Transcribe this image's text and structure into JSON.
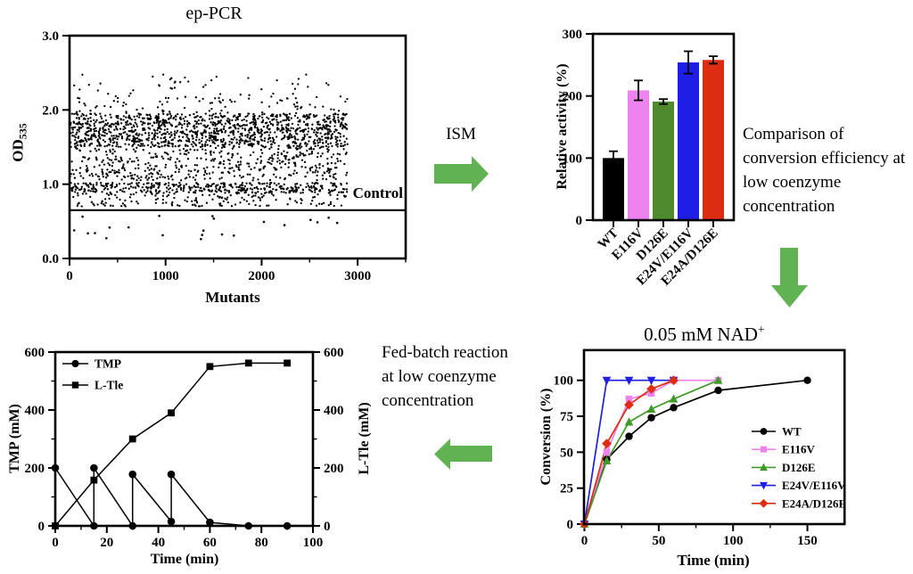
{
  "figure": {
    "background": "#ffffff",
    "arrow_color": "#61b252"
  },
  "annotations": {
    "ism_label": "ISM",
    "comparison_text": "Comparison of conversion efficiency at low coenzyme concentration",
    "fedbatch_text": "Fed-batch reaction at low coenzyme concentration"
  },
  "chart_data": [
    {
      "id": "ep_pcr_mutant_screen",
      "type": "scatter",
      "title": "ep-PCR",
      "xlabel": "Mutants",
      "ylabel": "OD535",
      "ylabel_base": "OD",
      "ylabel_sub": "535",
      "xlim": [
        0,
        3500
      ],
      "ylim": [
        0,
        3
      ],
      "x_major_ticks": [
        0,
        1000,
        2000,
        3000
      ],
      "x_major_tick_labels": [
        "0",
        "1000",
        "2000",
        "3000"
      ],
      "x_minor_ticks": [
        500,
        1500,
        2500,
        3500
      ],
      "y_major_ticks": [
        0,
        1,
        2,
        3
      ],
      "y_major_tick_labels": [
        "0.0",
        "1.0",
        "2.0",
        "3.0"
      ],
      "control_line_y": 0.65,
      "control_label": "Control",
      "point_color": "#000000",
      "points_model": {
        "seed": 987654321,
        "n_points": 2400,
        "x_range": [
          5,
          2895
        ],
        "y_bands": [
          {
            "range": [
              1.5,
              1.95
            ],
            "weight": 0.52
          },
          {
            "range": [
              1.05,
              1.5
            ],
            "weight": 0.2
          },
          {
            "range": [
              0.88,
              1.02
            ],
            "weight": 0.16
          },
          {
            "range": [
              0.7,
              0.88
            ],
            "weight": 0.07
          },
          {
            "range": [
              1.95,
              2.2
            ],
            "weight": 0.037
          },
          {
            "range": [
              2.2,
              2.48
            ],
            "weight": 0.013
          }
        ],
        "outliers_below_control": {
          "n": 22,
          "x_range": [
            40,
            2850
          ],
          "y_range": [
            0.25,
            0.58
          ]
        }
      }
    },
    {
      "id": "relative_activity_bars",
      "type": "bar",
      "ylabel": "Relative activity (%)",
      "categories": [
        "WT",
        "E116V",
        "D126E",
        "E24V/E116V",
        "E24A/D126E"
      ],
      "values": [
        100,
        209,
        191,
        254,
        258
      ],
      "errors": [
        11,
        16,
        4,
        18,
        6
      ],
      "bar_colors": [
        "#000000",
        "#ee82ee",
        "#4e8b2f",
        "#1e1ee6",
        "#dc2c12"
      ],
      "ylim": [
        0,
        300
      ],
      "y_major_ticks": [
        0,
        100,
        200,
        300
      ],
      "y_major_tick_labels": [
        "0",
        "100",
        "200",
        "300"
      ]
    },
    {
      "id": "conversion_time_course",
      "type": "line",
      "title": "0.05 mM NAD+",
      "title_base": "0.05 mM NAD",
      "title_sup": "+",
      "xlabel": "Time (min)",
      "ylabel": "Conversion (%)",
      "xlim": [
        0,
        175
      ],
      "ylim": [
        0,
        121
      ],
      "x_major_ticks": [
        0,
        50,
        100,
        150
      ],
      "x_major_tick_labels": [
        "0",
        "50",
        "100",
        "150"
      ],
      "x_minor_ticks": [
        25,
        75,
        125
      ],
      "y_major_ticks": [
        0,
        25,
        50,
        75,
        100
      ],
      "y_major_tick_labels": [
        "0",
        "25",
        "50",
        "75",
        "100"
      ],
      "legend_position": "inside right",
      "series": [
        {
          "name": "WT",
          "color": "#000000",
          "marker": "circle",
          "x": [
            0,
            15,
            30,
            45,
            60,
            90,
            150
          ],
          "y": [
            0,
            45,
            61,
            74,
            81,
            93,
            100
          ]
        },
        {
          "name": "E116V",
          "color": "#ee82ee",
          "marker": "square",
          "x": [
            0,
            15,
            30,
            45,
            60,
            90
          ],
          "y": [
            0,
            50,
            87,
            91,
            100,
            100
          ]
        },
        {
          "name": "D126E",
          "color": "#3f9b28",
          "marker": "triangle-up",
          "x": [
            0,
            15,
            30,
            45,
            60,
            90
          ],
          "y": [
            0,
            44,
            71,
            80,
            87,
            100
          ]
        },
        {
          "name": "E24V/E116V",
          "color": "#1e1ee6",
          "marker": "triangle-down",
          "x": [
            0,
            15,
            30,
            45,
            60
          ],
          "y": [
            0,
            100,
            100,
            100,
            100
          ]
        },
        {
          "name": "E24A/D126E",
          "color": "#dc2c12",
          "marker": "diamond",
          "x": [
            0,
            15,
            30,
            45,
            60
          ],
          "y": [
            0,
            56,
            83,
            94,
            100
          ]
        }
      ]
    },
    {
      "id": "fed_batch_reaction",
      "type": "line",
      "xlabel": "Time (min)",
      "ylabel_left": "TMP (mM)",
      "ylabel_right": "L-Tle (mM)",
      "xlim": [
        0,
        100
      ],
      "ylim": [
        0,
        600
      ],
      "x_major_ticks": [
        0,
        20,
        40,
        60,
        80,
        100
      ],
      "x_major_tick_labels": [
        "0",
        "20",
        "40",
        "60",
        "80",
        "100"
      ],
      "x_minor_ticks": [
        10,
        30,
        50,
        70,
        90
      ],
      "y_major_ticks": [
        0,
        200,
        400,
        600
      ],
      "y_major_tick_labels": [
        "0",
        "200",
        "400",
        "600"
      ],
      "y_minor_ticks": [
        100,
        300,
        500
      ],
      "legend_position": "inside top-left",
      "series": [
        {
          "name": "TMP",
          "color": "#000000",
          "marker": "circle",
          "x": [
            0,
            15,
            15,
            30,
            30,
            45,
            45,
            60,
            75,
            90
          ],
          "y": [
            200,
            0,
            200,
            0,
            178,
            15,
            178,
            12,
            0,
            0
          ]
        },
        {
          "name": "L-Tle",
          "color": "#000000",
          "marker": "square",
          "x": [
            0,
            15,
            30,
            45,
            60,
            75,
            90
          ],
          "y": [
            0,
            158,
            300,
            390,
            550,
            562,
            562
          ]
        }
      ]
    }
  ]
}
